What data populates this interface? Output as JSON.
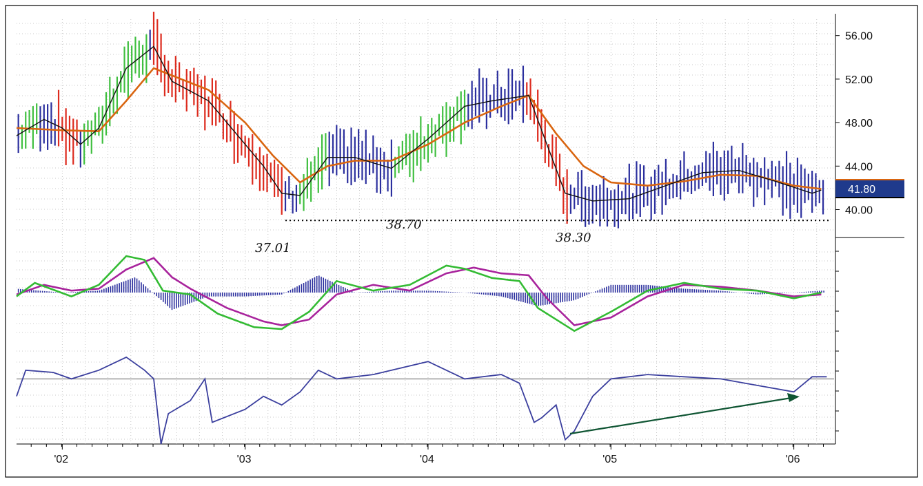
{
  "chart_data": [
    {
      "type": "ohlc-line",
      "panel": "price",
      "title": "",
      "xlabel": "",
      "ylabel": "",
      "x_ticks": [
        "'02",
        "'03",
        "'04",
        "'05",
        "'06"
      ],
      "y_ticks": [
        "40.00",
        "44.00",
        "48.00",
        "52.00",
        "56.00"
      ],
      "ylim": [
        37.5,
        57.5
      ],
      "grid": true,
      "last_price": "41.80",
      "support_level": 39,
      "annotations": [
        {
          "text": "37.01",
          "x": 2003.2,
          "y": 37.01
        },
        {
          "text": "38.70",
          "x": 2003.55,
          "y": 38.7
        },
        {
          "text": "38.30",
          "x": 2004.8,
          "y": 38.3
        }
      ],
      "bar_colors": {
        "up": "#3fbf3f",
        "down": "#dd2b1e",
        "neutral": "#2b2f9e"
      },
      "series": [
        {
          "color": "#d96510",
          "x": [
            2001.75,
            2002.0,
            2002.2,
            2002.35,
            2002.5,
            2002.65,
            2002.8,
            2003.0,
            2003.15,
            2003.3,
            2003.45,
            2003.6,
            2003.8,
            2004.0,
            2004.2,
            2004.4,
            2004.55,
            2004.7,
            2004.85,
            2005.0,
            2005.2,
            2005.4,
            2005.6,
            2005.8,
            2006.0,
            2006.15
          ],
          "y": [
            47.5,
            47.3,
            47.2,
            50.0,
            53.0,
            52.0,
            51.0,
            48.0,
            45.0,
            42.5,
            44.0,
            44.5,
            44.5,
            46.0,
            48.0,
            49.5,
            50.5,
            47.0,
            44.0,
            42.5,
            42.2,
            42.6,
            43.2,
            43.1,
            42.2,
            41.9
          ]
        },
        {
          "color": "#111111",
          "x": [
            2001.75,
            2001.9,
            2002.0,
            2002.1,
            2002.2,
            2002.35,
            2002.5,
            2002.6,
            2002.8,
            2003.0,
            2003.1,
            2003.2,
            2003.3,
            2003.45,
            2003.6,
            2003.8,
            2004.0,
            2004.2,
            2004.35,
            2004.55,
            2004.65,
            2004.75,
            2004.9,
            2005.1,
            2005.3,
            2005.5,
            2005.7,
            2005.9,
            2006.1,
            2006.15
          ],
          "y": [
            46.8,
            48.3,
            47.5,
            46.0,
            47.5,
            53.0,
            55.0,
            51.8,
            50.0,
            46.0,
            44.0,
            41.5,
            41.3,
            44.8,
            44.8,
            43.8,
            46.5,
            49.5,
            50.0,
            50.5,
            46.0,
            41.5,
            40.8,
            41.0,
            42.2,
            43.4,
            43.6,
            42.6,
            41.5,
            41.8
          ]
        }
      ]
    },
    {
      "type": "line",
      "panel": "oscillator",
      "ylim": [
        -1.2,
        1.2
      ],
      "series": [
        {
          "color": "#a8239c",
          "x": [
            2001.75,
            2001.9,
            2002.05,
            2002.2,
            2002.35,
            2002.5,
            2002.6,
            2002.7,
            2002.9,
            2003.1,
            2003.2,
            2003.35,
            2003.5,
            2003.7,
            2003.9,
            2004.1,
            2004.25,
            2004.4,
            2004.55,
            2004.65,
            2004.8,
            2005.0,
            2005.2,
            2005.4,
            2005.6,
            2005.8,
            2006.0,
            2006.15
          ],
          "y": [
            -0.05,
            0.2,
            0.05,
            0.1,
            0.6,
            0.9,
            0.4,
            0.1,
            -0.4,
            -0.75,
            -0.85,
            -0.7,
            -0.05,
            0.2,
            0.05,
            0.5,
            0.65,
            0.5,
            0.45,
            -0.15,
            -0.85,
            -0.65,
            -0.1,
            0.2,
            0.15,
            0.05,
            -0.1,
            -0.05
          ]
        },
        {
          "color": "#33bb33",
          "x": [
            2001.75,
            2001.85,
            2002.05,
            2002.2,
            2002.35,
            2002.45,
            2002.55,
            2002.7,
            2002.85,
            2003.05,
            2003.2,
            2003.35,
            2003.5,
            2003.7,
            2003.9,
            2004.1,
            2004.2,
            2004.35,
            2004.5,
            2004.6,
            2004.8,
            2005.0,
            2005.2,
            2005.4,
            2005.6,
            2005.8,
            2006.0,
            2006.15
          ],
          "y": [
            -0.1,
            0.25,
            -0.1,
            0.2,
            0.95,
            0.85,
            0.05,
            -0.05,
            -0.55,
            -0.9,
            -0.95,
            -0.5,
            0.3,
            0.05,
            0.2,
            0.7,
            0.62,
            0.38,
            0.3,
            -0.4,
            -1.0,
            -0.5,
            0.05,
            0.25,
            0.1,
            0.05,
            -0.15,
            0.0
          ]
        }
      ],
      "histogram_color": "#2b2f9e",
      "histogram": {
        "x": [
          2001.75,
          2002.0,
          2002.2,
          2002.4,
          2002.6,
          2002.8,
          2003.0,
          2003.2,
          2003.4,
          2003.6,
          2003.8,
          2004.0,
          2004.2,
          2004.4,
          2004.6,
          2004.8,
          2005.0,
          2005.2,
          2005.4,
          2005.6,
          2005.8,
          2006.0,
          2006.15
        ],
        "y": [
          0.1,
          0.0,
          0.05,
          0.4,
          -0.45,
          -0.1,
          -0.1,
          -0.05,
          0.45,
          0.0,
          0.05,
          0.05,
          0.0,
          -0.1,
          -0.35,
          -0.2,
          0.2,
          0.2,
          0.1,
          0.05,
          -0.05,
          0.0,
          0.05
        ]
      }
    },
    {
      "type": "line",
      "panel": "momentum",
      "ylim": [
        -1.5,
        0.8
      ],
      "reference_level": 0,
      "reference_color": "#8c8c8c",
      "arrow_color": "#0f5533",
      "series": [
        {
          "color": "#3b3f9e",
          "x": [
            2001.75,
            2001.8,
            2001.95,
            2002.05,
            2002.2,
            2002.35,
            2002.45,
            2002.5,
            2002.54,
            2002.58,
            2002.7,
            2002.78,
            2002.82,
            2003.0,
            2003.1,
            2003.2,
            2003.3,
            2003.4,
            2003.5,
            2003.7,
            2004.0,
            2004.2,
            2004.4,
            2004.5,
            2004.58,
            2004.62,
            2004.7,
            2004.75,
            2004.8,
            2004.9,
            2005.0,
            2005.2,
            2005.4,
            2005.6,
            2005.8,
            2006.0,
            2006.1,
            2006.18
          ],
          "y": [
            -0.4,
            0.2,
            0.15,
            0.0,
            0.2,
            0.5,
            0.2,
            0.0,
            -1.5,
            -0.8,
            -0.5,
            0.0,
            -1.0,
            -0.7,
            -0.4,
            -0.6,
            -0.3,
            0.2,
            0.0,
            0.1,
            0.4,
            0.0,
            0.1,
            -0.1,
            -1.0,
            -0.9,
            -0.6,
            -1.4,
            -1.2,
            -0.4,
            0.0,
            0.1,
            0.05,
            0.0,
            -0.15,
            -0.3,
            0.05,
            0.05
          ]
        }
      ]
    }
  ]
}
